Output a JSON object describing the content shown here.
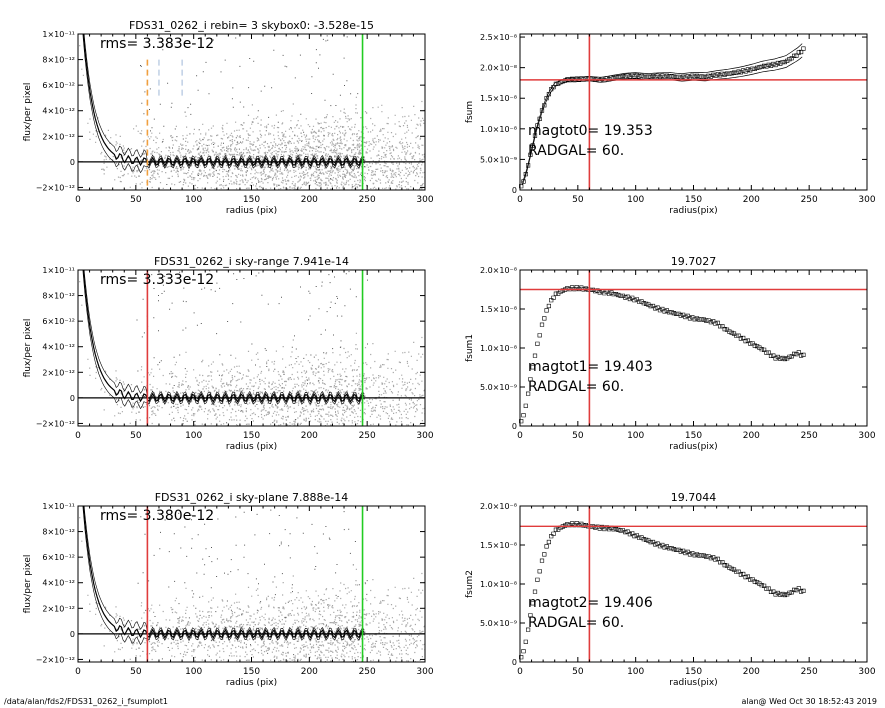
{
  "footer": {
    "path": "/data/alan/fds2/FDS31_0262_i_fsumplot1",
    "user_time": "alan@  Wed Oct 30 18:52:43 2019"
  },
  "colors": {
    "scatter": "#a8a8a8",
    "profile": "#000000",
    "radgal_line": "#e03c3c",
    "edge_line": "#22cc22",
    "orange_dash": "#f0a040",
    "blue_dash": "#a0b8d8"
  },
  "chart_data": [
    {
      "id": "left-1",
      "type": "scatter",
      "title": "FDS31_0262_i rebin= 3    skybox0: -3.528e-15",
      "xlabel": "radius (pix)",
      "ylabel": "flux/per pixel",
      "xlim": [
        0,
        300
      ],
      "ylim": [
        -2.2e-12,
        1e-11
      ],
      "xticks": [
        "0",
        "50",
        "100",
        "150",
        "200",
        "250",
        "300"
      ],
      "yticks": [
        "−2×10⁻¹²",
        "0",
        "2×10⁻¹²",
        "4×10⁻¹²",
        "6×10⁻¹²",
        "8×10⁻¹²",
        "1×10⁻¹¹"
      ],
      "annotation": "rms= 3.383e-12",
      "vlines": [
        {
          "x": 60,
          "color": "orange_dash",
          "style": "dashed"
        },
        {
          "x": 70,
          "color": "blue_dash",
          "style": "dashed"
        },
        {
          "x": 90,
          "color": "blue_dash",
          "style": "dashed"
        },
        {
          "x": 246,
          "color": "edge_line",
          "style": "solid"
        }
      ],
      "hline": 0
    },
    {
      "id": "left-2",
      "type": "scatter",
      "title": "FDS31_0262_i sky-range  7.941e-14",
      "xlabel": "radius (pix)",
      "ylabel": "flux/per pixel",
      "xlim": [
        0,
        300
      ],
      "ylim": [
        -2.2e-12,
        1e-11
      ],
      "xticks": [
        "0",
        "50",
        "100",
        "150",
        "200",
        "250",
        "300"
      ],
      "yticks": [
        "−2×10⁻¹²",
        "0",
        "2×10⁻¹²",
        "4×10⁻¹²",
        "6×10⁻¹²",
        "8×10⁻¹²",
        "1×10⁻¹¹"
      ],
      "annotation": "rms= 3.333e-12",
      "vlines": [
        {
          "x": 60,
          "color": "radgal_line",
          "style": "solid"
        },
        {
          "x": 246,
          "color": "edge_line",
          "style": "solid"
        }
      ],
      "hline": 0
    },
    {
      "id": "left-3",
      "type": "scatter",
      "title": "FDS31_0262_i sky-plane  7.888e-14",
      "xlabel": "radius (pix)",
      "ylabel": "flux/per pixel",
      "xlim": [
        0,
        300
      ],
      "ylim": [
        -2.2e-12,
        1e-11
      ],
      "xticks": [
        "0",
        "50",
        "100",
        "150",
        "200",
        "250",
        "300"
      ],
      "yticks": [
        "−2×10⁻¹²",
        "0",
        "2×10⁻¹²",
        "4×10⁻¹²",
        "6×10⁻¹²",
        "8×10⁻¹²",
        "1×10⁻¹¹"
      ],
      "annotation": "rms= 3.380e-12",
      "vlines": [
        {
          "x": 60,
          "color": "radgal_line",
          "style": "solid"
        },
        {
          "x": 246,
          "color": "edge_line",
          "style": "solid"
        }
      ],
      "hline": 0
    },
    {
      "id": "right-1",
      "type": "line",
      "title": "",
      "xlabel": "radius(pix)",
      "ylabel": "fsum",
      "xlim": [
        0,
        300
      ],
      "ylim": [
        0,
        2.55e-08
      ],
      "xticks": [
        "0",
        "50",
        "100",
        "150",
        "200",
        "250",
        "300"
      ],
      "yticks": [
        "0",
        "5.0×10⁻⁹",
        "1.0×10⁻⁸",
        "1.5×10⁻⁸",
        "2.0×10⁻⁸",
        "2.5×10⁻⁸"
      ],
      "ytick_values": [
        0,
        5e-09,
        1e-08,
        1.5e-08,
        2e-08,
        2.5e-08
      ],
      "annotation_lines": [
        "magtot0=  19.353",
        " RADGAL=     60."
      ],
      "vline": 60,
      "hline": 1.8e-08,
      "envelope": true,
      "curve": [
        [
          0,
          0
        ],
        [
          5,
          2.5e-09
        ],
        [
          10,
          6.5e-09
        ],
        [
          15,
          1.05e-08
        ],
        [
          20,
          1.35e-08
        ],
        [
          25,
          1.58e-08
        ],
        [
          30,
          1.72e-08
        ],
        [
          40,
          1.8e-08
        ],
        [
          50,
          1.81e-08
        ],
        [
          60,
          1.82e-08
        ],
        [
          70,
          1.8e-08
        ],
        [
          80,
          1.83e-08
        ],
        [
          90,
          1.86e-08
        ],
        [
          100,
          1.87e-08
        ],
        [
          110,
          1.85e-08
        ],
        [
          120,
          1.86e-08
        ],
        [
          130,
          1.86e-08
        ],
        [
          140,
          1.84e-08
        ],
        [
          150,
          1.86e-08
        ],
        [
          160,
          1.85e-08
        ],
        [
          170,
          1.88e-08
        ],
        [
          180,
          1.9e-08
        ],
        [
          190,
          1.93e-08
        ],
        [
          200,
          1.97e-08
        ],
        [
          210,
          2.02e-08
        ],
        [
          220,
          2.05e-08
        ],
        [
          230,
          2.1e-08
        ],
        [
          240,
          2.22e-08
        ],
        [
          245,
          2.3e-08
        ]
      ]
    },
    {
      "id": "right-2",
      "type": "line",
      "title": "19.7027",
      "xlabel": "radius(pix)",
      "ylabel": "fsum1",
      "xlim": [
        0,
        300
      ],
      "ylim": [
        0,
        2e-08
      ],
      "xticks": [
        "0",
        "50",
        "100",
        "150",
        "200",
        "250",
        "300"
      ],
      "yticks": [
        "0",
        "5.0×10⁻⁹",
        "1.0×10⁻⁸",
        "1.5×10⁻⁸",
        "2.0×10⁻⁸"
      ],
      "ytick_values": [
        0,
        5e-09,
        1e-08,
        1.5e-08,
        2e-08
      ],
      "annotation_lines": [
        "magtot1=  19.403",
        " RADGAL=     60."
      ],
      "vline": 60,
      "hline": 1.75e-08,
      "envelope": false,
      "curve": [
        [
          0,
          0
        ],
        [
          5,
          2.5e-09
        ],
        [
          10,
          6.8e-09
        ],
        [
          15,
          1.05e-08
        ],
        [
          20,
          1.35e-08
        ],
        [
          25,
          1.55e-08
        ],
        [
          30,
          1.68e-08
        ],
        [
          40,
          1.76e-08
        ],
        [
          50,
          1.77e-08
        ],
        [
          60,
          1.75e-08
        ],
        [
          70,
          1.72e-08
        ],
        [
          80,
          1.7e-08
        ],
        [
          90,
          1.66e-08
        ],
        [
          100,
          1.62e-08
        ],
        [
          110,
          1.56e-08
        ],
        [
          120,
          1.5e-08
        ],
        [
          130,
          1.46e-08
        ],
        [
          140,
          1.42e-08
        ],
        [
          150,
          1.38e-08
        ],
        [
          160,
          1.36e-08
        ],
        [
          170,
          1.32e-08
        ],
        [
          180,
          1.22e-08
        ],
        [
          190,
          1.14e-08
        ],
        [
          200,
          1.06e-08
        ],
        [
          210,
          9.8e-09
        ],
        [
          220,
          8.8e-09
        ],
        [
          230,
          8.6e-09
        ],
        [
          240,
          9.4e-09
        ],
        [
          245,
          9e-09
        ]
      ]
    },
    {
      "id": "right-3",
      "type": "line",
      "title": "19.7044",
      "xlabel": "radius(pix)",
      "ylabel": "fsum2",
      "xlim": [
        0,
        300
      ],
      "ylim": [
        0,
        2e-08
      ],
      "xticks": [
        "0",
        "50",
        "100",
        "150",
        "200",
        "250",
        "300"
      ],
      "yticks": [
        "0",
        "5.0×10⁻⁹",
        "1.0×10⁻⁸",
        "1.5×10⁻⁸",
        "2.0×10⁻⁸"
      ],
      "ytick_values": [
        0,
        5e-09,
        1e-08,
        1.5e-08,
        2e-08
      ],
      "annotation_lines": [
        "magtot2=  19.406",
        " RADGAL=     60."
      ],
      "vline": 60,
      "hline": 1.74e-08,
      "envelope": false,
      "curve": [
        [
          0,
          0
        ],
        [
          5,
          2.5e-09
        ],
        [
          10,
          6.8e-09
        ],
        [
          15,
          1.05e-08
        ],
        [
          20,
          1.35e-08
        ],
        [
          25,
          1.55e-08
        ],
        [
          30,
          1.68e-08
        ],
        [
          40,
          1.76e-08
        ],
        [
          50,
          1.77e-08
        ],
        [
          60,
          1.74e-08
        ],
        [
          70,
          1.72e-08
        ],
        [
          80,
          1.71e-08
        ],
        [
          90,
          1.68e-08
        ],
        [
          100,
          1.62e-08
        ],
        [
          110,
          1.56e-08
        ],
        [
          120,
          1.5e-08
        ],
        [
          130,
          1.46e-08
        ],
        [
          140,
          1.42e-08
        ],
        [
          150,
          1.38e-08
        ],
        [
          160,
          1.36e-08
        ],
        [
          170,
          1.32e-08
        ],
        [
          180,
          1.22e-08
        ],
        [
          190,
          1.14e-08
        ],
        [
          200,
          1.06e-08
        ],
        [
          210,
          9.8e-09
        ],
        [
          220,
          8.8e-09
        ],
        [
          230,
          8.6e-09
        ],
        [
          240,
          9.4e-09
        ],
        [
          245,
          9e-09
        ]
      ]
    }
  ]
}
